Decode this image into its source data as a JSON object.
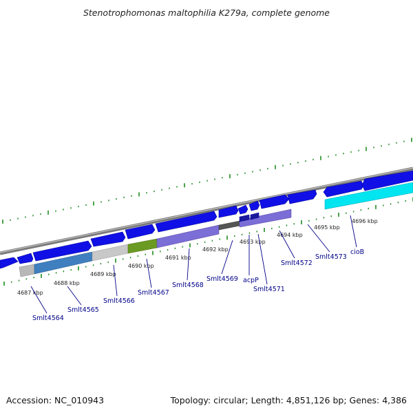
{
  "title": "Stenotrophomonas maltophilia K279a, complete genome",
  "footer": {
    "accession": "Accession: NC_010943",
    "summary": "Topology: circular; Length: 4,851,126 bp; Genes: 4,386"
  },
  "ticks": [
    {
      "label": "4687 kbp"
    },
    {
      "label": "4688 kbp"
    },
    {
      "label": "4689 kbp"
    },
    {
      "label": "4690 kbp"
    },
    {
      "label": "4691 kbp"
    },
    {
      "label": "4692 kbp"
    },
    {
      "label": "4693 kbp"
    },
    {
      "label": "4694 kbp"
    },
    {
      "label": "4695 kbp"
    },
    {
      "label": "4696 kbp"
    }
  ],
  "gene_labels": [
    {
      "label": "Smlt4564"
    },
    {
      "label": "Smlt4565"
    },
    {
      "label": "Smlt4566"
    },
    {
      "label": "Smlt4567"
    },
    {
      "label": "Smlt4568"
    },
    {
      "label": "Smlt4569"
    },
    {
      "label": "acpP"
    },
    {
      "label": "Smlt4571"
    },
    {
      "label": "Smlt4572"
    },
    {
      "label": "Smlt4573"
    },
    {
      "label": "cioB"
    }
  ],
  "colors": {
    "backbone": "#888888",
    "cds": "#1010e6",
    "tick": "#1f8a1f",
    "label": "#000088"
  }
}
